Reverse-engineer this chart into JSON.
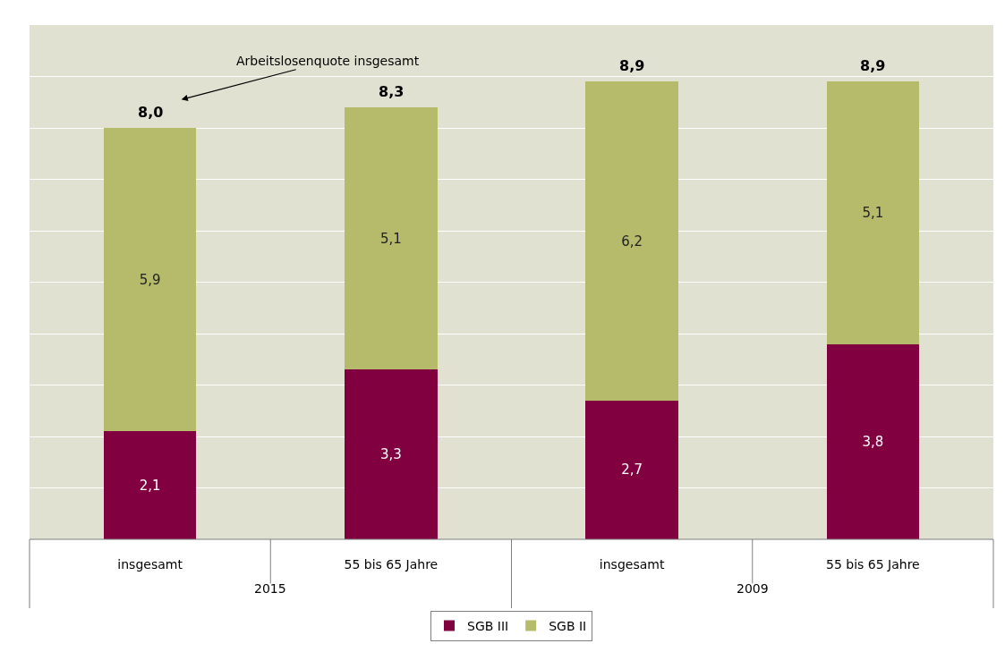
{
  "chart_data": {
    "type": "bar",
    "stacked": true,
    "categories": [
      "insgesamt",
      "55 bis 65 Jahre",
      "insgesamt",
      "55 bis 65 Jahre"
    ],
    "series": [
      {
        "name": "SGB III",
        "color": "#800040",
        "values": [
          2.1,
          3.3,
          2.7,
          3.8
        ],
        "value_labels": [
          "2,1",
          "3,3",
          "2,7",
          "3,8"
        ]
      },
      {
        "name": "SGB II",
        "color": "#b5bb6a",
        "values": [
          5.9,
          5.1,
          6.2,
          5.1
        ],
        "value_labels": [
          "5,9",
          "5,1",
          "6,2",
          "5,1"
        ]
      }
    ],
    "totals": [
      "8,0",
      "8,3",
      "8,9",
      "8,9"
    ],
    "ylim": [
      0,
      10
    ],
    "yticks": [
      {
        "value": 0,
        "label": null
      },
      {
        "value": 1,
        "label": null
      },
      {
        "value": 2,
        "label": null
      },
      {
        "value": 3,
        "label": null
      },
      {
        "value": 4,
        "label": null
      },
      {
        "value": 5,
        "label": null
      },
      {
        "value": 6,
        "label": null
      },
      {
        "value": 7,
        "label": null
      },
      {
        "value": 8,
        "label": null
      },
      {
        "value": 9,
        "label": null
      },
      {
        "value": 10,
        "label": null
      }
    ],
    "tick_labels": "x",
    "grid": true,
    "legend": "bottom",
    "annotations": [
      "Arbeitslosenquote insgesamt",
      "2015",
      "2009"
    ]
  }
}
